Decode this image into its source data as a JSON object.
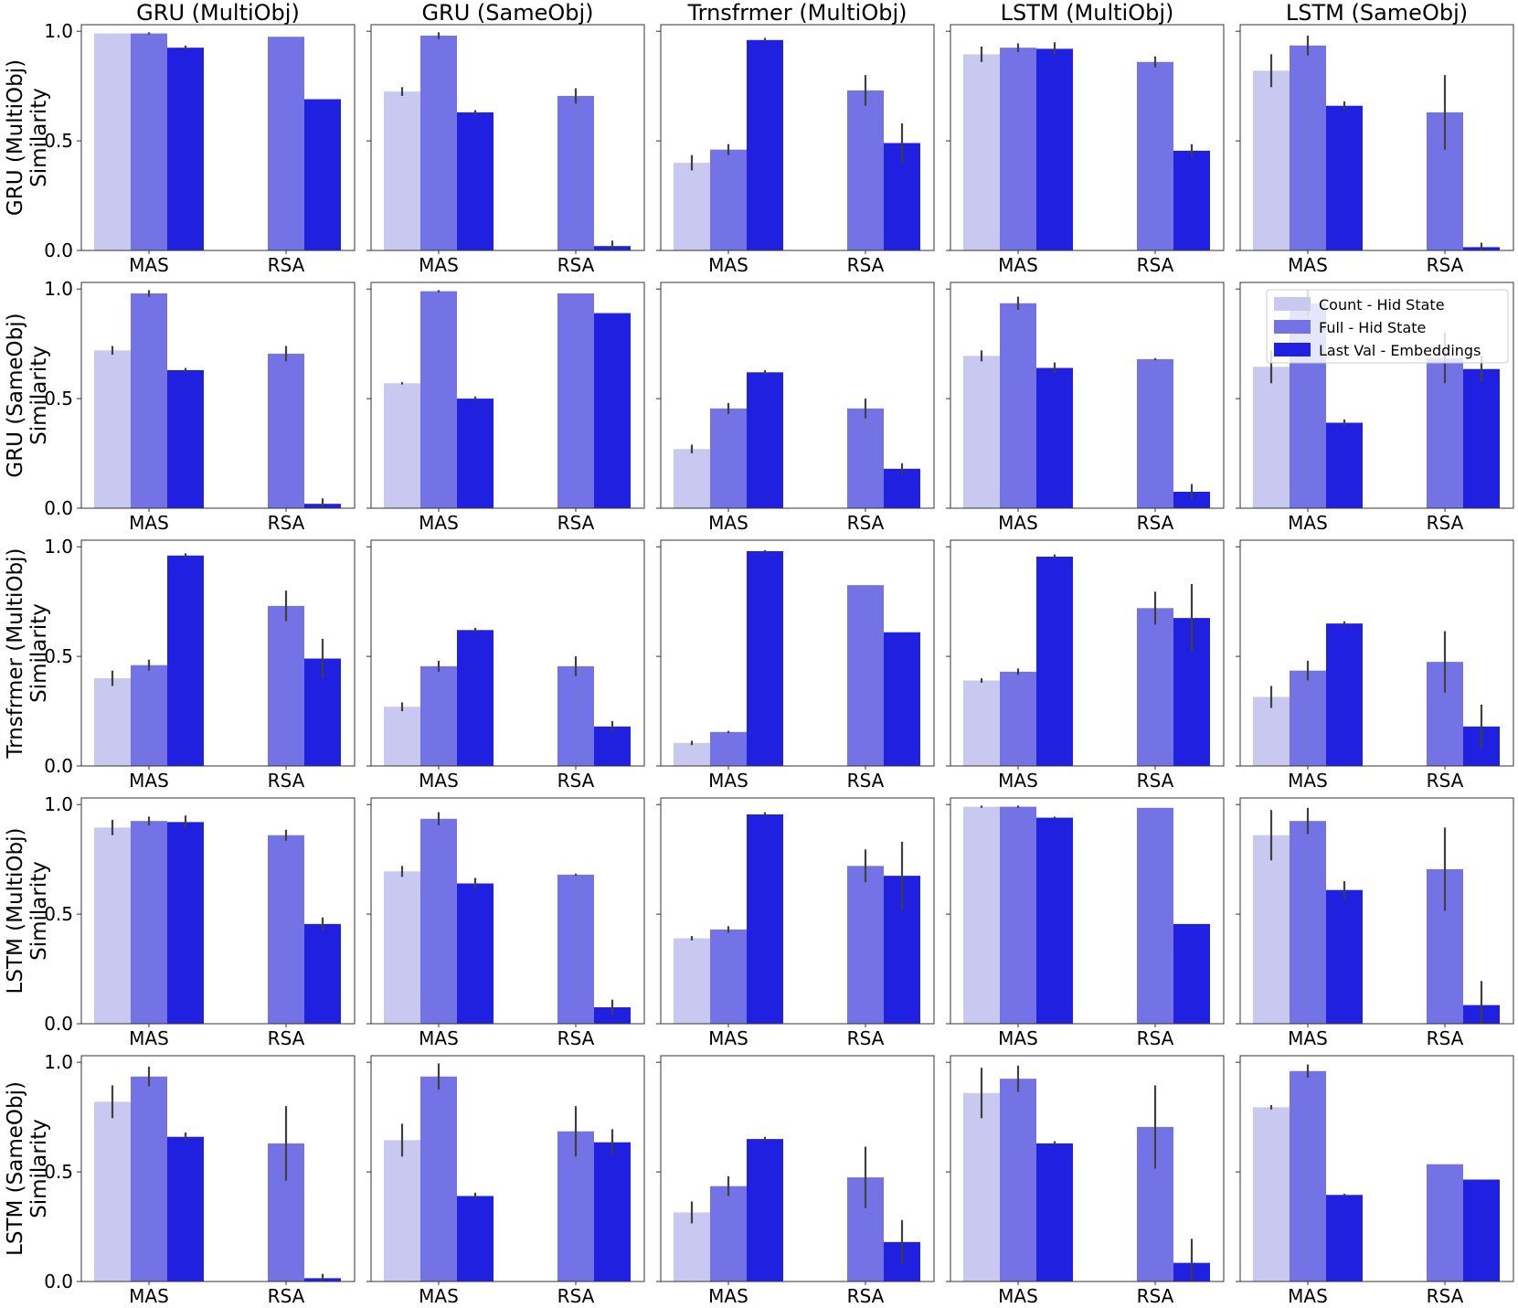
{
  "chart_data": {
    "type": "bar",
    "layout": "5x5 grid of grouped bar charts",
    "col_titles": [
      "GRU (MultiObj)",
      "GRU (SameObj)",
      "Trnsfrmer (MultiObj)",
      "LSTM (MultiObj)",
      "LSTM (SameObj)"
    ],
    "row_labels": [
      [
        "GRU (MultiObj)",
        "Similarity"
      ],
      [
        "GRU (SameObj)",
        "Similarity"
      ],
      [
        "Trnsfrmer (MultiObj)",
        "Similarity"
      ],
      [
        "LSTM (MultiObj)",
        "Similarity"
      ],
      [
        "LSTM (SameObj)",
        "Similarity"
      ]
    ],
    "categories": [
      "MAS",
      "RSA"
    ],
    "yticks": [
      "0.0",
      "0.5",
      "1.0"
    ],
    "ylim": [
      0,
      1.03
    ],
    "legend": {
      "location": "inside row 2, col 5, upper right",
      "entries": [
        "Count - Hid State",
        "Full - Hid State",
        "Last Val - Embeddings"
      ]
    },
    "colors": [
      "#c8c8f0",
      "#7373e6",
      "#2020e0"
    ],
    "error_color": "#404040",
    "panels": [
      [
        {
          "values": [
            [
              0.99,
              0.99,
              0.925
            ],
            [
              0,
              0.975,
              0.69
            ]
          ],
          "errors": [
            [
              0,
              0.005,
              0.01
            ],
            [
              0,
              0,
              0
            ]
          ]
        },
        {
          "values": [
            [
              0.725,
              0.98,
              0.63
            ],
            [
              0,
              0.705,
              0.02
            ]
          ],
          "errors": [
            [
              0.02,
              0.015,
              0.01
            ],
            [
              0,
              0.035,
              0.025
            ]
          ]
        },
        {
          "values": [
            [
              0.4,
              0.46,
              0.96
            ],
            [
              0,
              0.73,
              0.49
            ]
          ],
          "errors": [
            [
              0.035,
              0.025,
              0.01
            ],
            [
              0,
              0.07,
              0.09
            ]
          ]
        },
        {
          "values": [
            [
              0.895,
              0.925,
              0.92
            ],
            [
              0,
              0.86,
              0.455
            ]
          ],
          "errors": [
            [
              0.035,
              0.02,
              0.03
            ],
            [
              0,
              0.025,
              0.03
            ]
          ]
        },
        {
          "values": [
            [
              0.82,
              0.935,
              0.66
            ],
            [
              0,
              0.63,
              0.015
            ]
          ],
          "errors": [
            [
              0.075,
              0.045,
              0.02
            ],
            [
              0,
              0.17,
              0.02
            ]
          ]
        }
      ],
      [
        {
          "values": [
            [
              0.72,
              0.98,
              0.63
            ],
            [
              0,
              0.705,
              0.02
            ]
          ],
          "errors": [
            [
              0.02,
              0.015,
              0.01
            ],
            [
              0,
              0.035,
              0.025
            ]
          ]
        },
        {
          "values": [
            [
              0.57,
              0.99,
              0.5
            ],
            [
              0,
              0.98,
              0.89
            ]
          ],
          "errors": [
            [
              0.005,
              0.005,
              0.01
            ],
            [
              0,
              0,
              0
            ]
          ]
        },
        {
          "values": [
            [
              0.27,
              0.455,
              0.62
            ],
            [
              0,
              0.455,
              0.18
            ]
          ],
          "errors": [
            [
              0.02,
              0.025,
              0.01
            ],
            [
              0,
              0.045,
              0.025
            ]
          ]
        },
        {
          "values": [
            [
              0.695,
              0.935,
              0.64
            ],
            [
              0,
              0.68,
              0.075
            ]
          ],
          "errors": [
            [
              0.025,
              0.03,
              0.025
            ],
            [
              0,
              0.005,
              0.035
            ]
          ]
        },
        {
          "values": [
            [
              0.645,
              0.935,
              0.39
            ],
            [
              0,
              0.685,
              0.635
            ]
          ],
          "errors": [
            [
              0.075,
              0.06,
              0.015
            ],
            [
              0,
              0.115,
              0.06
            ]
          ]
        }
      ],
      [
        {
          "values": [
            [
              0.4,
              0.46,
              0.96
            ],
            [
              0,
              0.73,
              0.49
            ]
          ],
          "errors": [
            [
              0.035,
              0.025,
              0.01
            ],
            [
              0,
              0.07,
              0.09
            ]
          ]
        },
        {
          "values": [
            [
              0.27,
              0.455,
              0.62
            ],
            [
              0,
              0.455,
              0.18
            ]
          ],
          "errors": [
            [
              0.02,
              0.025,
              0.01
            ],
            [
              0,
              0.045,
              0.025
            ]
          ]
        },
        {
          "values": [
            [
              0.105,
              0.155,
              0.98
            ],
            [
              0,
              0.825,
              0.61
            ]
          ],
          "errors": [
            [
              0.01,
              0.005,
              0.005
            ],
            [
              0,
              0,
              0
            ]
          ]
        },
        {
          "values": [
            [
              0.39,
              0.43,
              0.955
            ],
            [
              0,
              0.72,
              0.675
            ]
          ],
          "errors": [
            [
              0.01,
              0.015,
              0.01
            ],
            [
              0,
              0.075,
              0.155
            ]
          ]
        },
        {
          "values": [
            [
              0.315,
              0.435,
              0.65
            ],
            [
              0,
              0.475,
              0.18
            ]
          ],
          "errors": [
            [
              0.05,
              0.045,
              0.01
            ],
            [
              0,
              0.14,
              0.1
            ]
          ]
        }
      ],
      [
        {
          "values": [
            [
              0.895,
              0.925,
              0.92
            ],
            [
              0,
              0.86,
              0.455
            ]
          ],
          "errors": [
            [
              0.035,
              0.02,
              0.03
            ],
            [
              0,
              0.025,
              0.03
            ]
          ]
        },
        {
          "values": [
            [
              0.695,
              0.935,
              0.64
            ],
            [
              0,
              0.68,
              0.075
            ]
          ],
          "errors": [
            [
              0.025,
              0.03,
              0.025
            ],
            [
              0,
              0.005,
              0.035
            ]
          ]
        },
        {
          "values": [
            [
              0.39,
              0.43,
              0.955
            ],
            [
              0,
              0.72,
              0.675
            ]
          ],
          "errors": [
            [
              0.01,
              0.015,
              0.01
            ],
            [
              0,
              0.075,
              0.155
            ]
          ]
        },
        {
          "values": [
            [
              0.99,
              0.99,
              0.94
            ],
            [
              0,
              0.985,
              0.455
            ]
          ],
          "errors": [
            [
              0.005,
              0.005,
              0.005
            ],
            [
              0,
              0,
              0
            ]
          ]
        },
        {
          "values": [
            [
              0.86,
              0.925,
              0.61
            ],
            [
              0,
              0.705,
              0.085
            ]
          ],
          "errors": [
            [
              0.115,
              0.06,
              0.04
            ],
            [
              0,
              0.19,
              0.11
            ]
          ]
        }
      ],
      [
        {
          "values": [
            [
              0.82,
              0.935,
              0.66
            ],
            [
              0,
              0.63,
              0.015
            ]
          ],
          "errors": [
            [
              0.075,
              0.045,
              0.02
            ],
            [
              0,
              0.17,
              0.02
            ]
          ]
        },
        {
          "values": [
            [
              0.645,
              0.935,
              0.39
            ],
            [
              0,
              0.685,
              0.635
            ]
          ],
          "errors": [
            [
              0.075,
              0.06,
              0.015
            ],
            [
              0,
              0.115,
              0.06
            ]
          ]
        },
        {
          "values": [
            [
              0.315,
              0.435,
              0.65
            ],
            [
              0,
              0.475,
              0.18
            ]
          ],
          "errors": [
            [
              0.05,
              0.045,
              0.01
            ],
            [
              0,
              0.14,
              0.1
            ]
          ]
        },
        {
          "values": [
            [
              0.86,
              0.925,
              0.63
            ],
            [
              0,
              0.705,
              0.085
            ]
          ],
          "errors": [
            [
              0.115,
              0.06,
              0.01
            ],
            [
              0,
              0.19,
              0.11
            ]
          ]
        },
        {
          "values": [
            [
              0.795,
              0.96,
              0.395
            ],
            [
              0,
              0.535,
              0.465
            ]
          ],
          "errors": [
            [
              0.01,
              0.03,
              0.005
            ],
            [
              0,
              0,
              0
            ]
          ]
        }
      ]
    ]
  }
}
